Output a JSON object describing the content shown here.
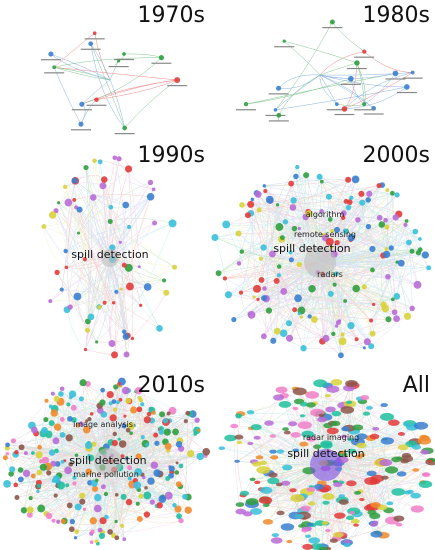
{
  "panels": [
    {
      "title": "1970s",
      "labels": []
    },
    {
      "title": "1980s",
      "labels": []
    },
    {
      "title": "1990s",
      "labels": [
        "spill detection"
      ]
    },
    {
      "title": "2000s",
      "labels": [
        "spill detection",
        "remote sensing",
        "algorithm",
        "radars"
      ]
    },
    {
      "title": "2010s",
      "labels": [
        "spill detection",
        "image analysis",
        "marine pollution"
      ]
    },
    {
      "title": "All",
      "labels": [
        "spill detection",
        "radar imaging"
      ]
    }
  ]
}
